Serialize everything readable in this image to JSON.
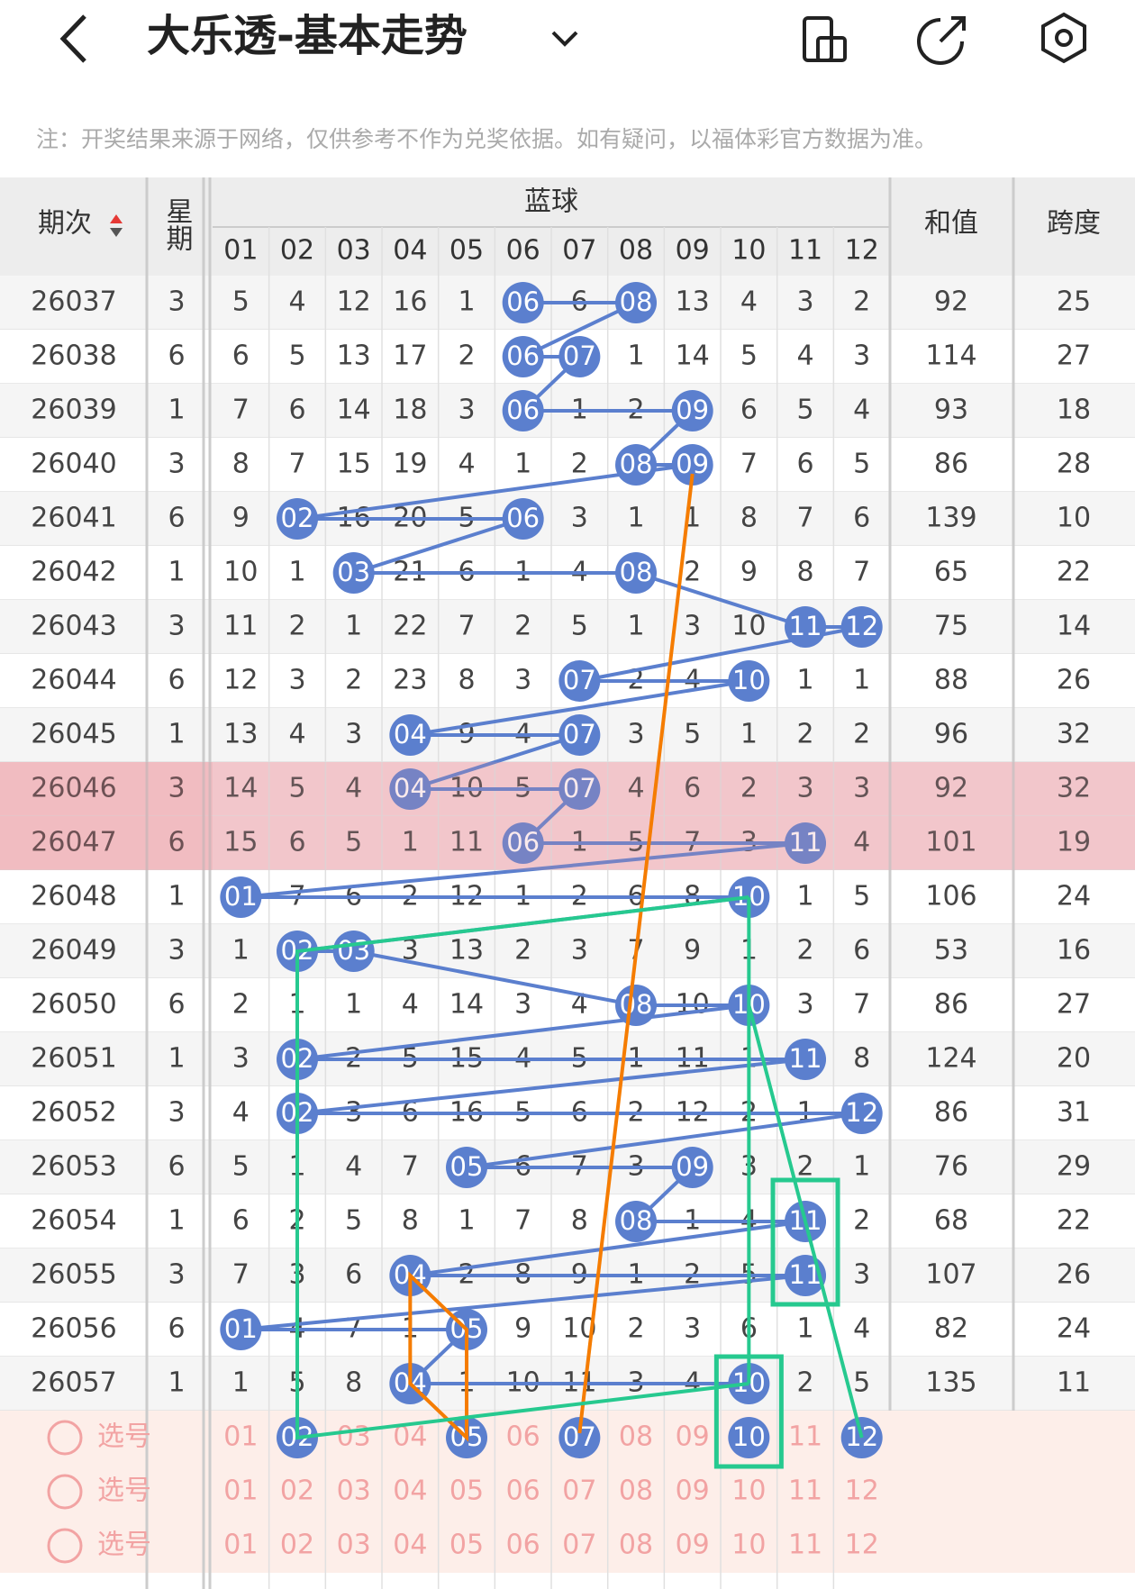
{
  "header": {
    "title": "大乐透-基本走势",
    "note": "注：开奖结果来源于网络，仅供参考不作为兑奖依据。如有疑问，以福体彩官方数据为准。"
  },
  "table": {
    "headers": {
      "period": "期次",
      "weekday": "星期",
      "blue": "蓝球",
      "numbers": [
        "01",
        "02",
        "03",
        "04",
        "05",
        "06",
        "07",
        "08",
        "09",
        "10",
        "11",
        "12"
      ],
      "sum": "和值",
      "span": "跨度"
    },
    "rows": [
      {
        "period": "26037",
        "weekday": 3,
        "cells": [
          5,
          4,
          12,
          16,
          1,
          {
            "ball": "06"
          },
          6,
          {
            "ball": "08"
          },
          13,
          4,
          3,
          2
        ],
        "sum": 92,
        "span": 25
      },
      {
        "period": "26038",
        "weekday": 6,
        "cells": [
          6,
          5,
          13,
          17,
          2,
          {
            "ball": "06"
          },
          {
            "ball": "07"
          },
          1,
          14,
          5,
          4,
          3
        ],
        "sum": 114,
        "span": 27
      },
      {
        "period": "26039",
        "weekday": 1,
        "cells": [
          7,
          6,
          14,
          18,
          3,
          {
            "ball": "06"
          },
          1,
          2,
          {
            "ball": "09"
          },
          6,
          5,
          4
        ],
        "sum": 93,
        "span": 18
      },
      {
        "period": "26040",
        "weekday": 3,
        "cells": [
          8,
          7,
          15,
          19,
          4,
          1,
          2,
          {
            "ball": "08"
          },
          {
            "ball": "09"
          },
          7,
          6,
          5
        ],
        "sum": 86,
        "span": 28
      },
      {
        "period": "26041",
        "weekday": 6,
        "cells": [
          9,
          {
            "ball": "02"
          },
          16,
          20,
          5,
          {
            "ball": "06"
          },
          3,
          1,
          1,
          8,
          7,
          6
        ],
        "sum": 139,
        "span": 10
      },
      {
        "period": "26042",
        "weekday": 1,
        "cells": [
          10,
          1,
          {
            "ball": "03"
          },
          21,
          6,
          1,
          4,
          {
            "ball": "08"
          },
          2,
          9,
          8,
          7
        ],
        "sum": 65,
        "span": 22
      },
      {
        "period": "26043",
        "weekday": 3,
        "cells": [
          11,
          2,
          1,
          22,
          7,
          2,
          5,
          1,
          3,
          10,
          {
            "ball": "11"
          },
          {
            "ball": "12"
          }
        ],
        "sum": 75,
        "span": 14
      },
      {
        "period": "26044",
        "weekday": 6,
        "cells": [
          12,
          3,
          2,
          23,
          8,
          3,
          {
            "ball": "07"
          },
          2,
          4,
          {
            "ball": "10"
          },
          1,
          1
        ],
        "sum": 88,
        "span": 26
      },
      {
        "period": "26045",
        "weekday": 1,
        "cells": [
          13,
          4,
          3,
          {
            "ball": "04"
          },
          9,
          4,
          {
            "ball": "07"
          },
          3,
          5,
          1,
          2,
          2
        ],
        "sum": 96,
        "span": 32
      },
      {
        "period": "26046",
        "weekday": 3,
        "cells": [
          14,
          5,
          4,
          {
            "ball": "04"
          },
          10,
          5,
          {
            "ball": "07"
          },
          4,
          6,
          2,
          3,
          3
        ],
        "sum": 92,
        "span": 32,
        "highlight": true
      },
      {
        "period": "26047",
        "weekday": 6,
        "cells": [
          15,
          6,
          5,
          1,
          11,
          {
            "ball": "06"
          },
          1,
          5,
          7,
          3,
          {
            "ball": "11"
          },
          4
        ],
        "sum": 101,
        "span": 19,
        "highlight": true
      },
      {
        "period": "26048",
        "weekday": 1,
        "cells": [
          {
            "ball": "01"
          },
          7,
          6,
          2,
          12,
          1,
          2,
          6,
          8,
          {
            "ball": "10"
          },
          1,
          5
        ],
        "sum": 106,
        "span": 24
      },
      {
        "period": "26049",
        "weekday": 3,
        "cells": [
          1,
          {
            "ball": "02"
          },
          {
            "ball": "03"
          },
          3,
          13,
          2,
          3,
          7,
          9,
          1,
          2,
          6
        ],
        "sum": 53,
        "span": 16
      },
      {
        "period": "26050",
        "weekday": 6,
        "cells": [
          2,
          1,
          1,
          4,
          14,
          3,
          4,
          {
            "ball": "08"
          },
          10,
          {
            "ball": "10"
          },
          3,
          7
        ],
        "sum": 86,
        "span": 27
      },
      {
        "period": "26051",
        "weekday": 1,
        "cells": [
          3,
          {
            "ball": "02"
          },
          2,
          5,
          15,
          4,
          5,
          1,
          11,
          1,
          {
            "ball": "11"
          },
          8
        ],
        "sum": 124,
        "span": 20
      },
      {
        "period": "26052",
        "weekday": 3,
        "cells": [
          4,
          {
            "ball": "02"
          },
          3,
          6,
          16,
          5,
          6,
          2,
          12,
          2,
          1,
          {
            "ball": "12"
          }
        ],
        "sum": 86,
        "span": 31
      },
      {
        "period": "26053",
        "weekday": 6,
        "cells": [
          5,
          1,
          4,
          7,
          {
            "ball": "05"
          },
          6,
          7,
          3,
          {
            "ball": "09"
          },
          3,
          2,
          1
        ],
        "sum": 76,
        "span": 29
      },
      {
        "period": "26054",
        "weekday": 1,
        "cells": [
          6,
          2,
          5,
          8,
          1,
          7,
          8,
          {
            "ball": "08"
          },
          1,
          4,
          {
            "ball": "11"
          },
          2
        ],
        "sum": 68,
        "span": 22
      },
      {
        "period": "26055",
        "weekday": 3,
        "cells": [
          7,
          3,
          6,
          {
            "ball": "04"
          },
          2,
          8,
          9,
          1,
          2,
          5,
          {
            "ball": "11"
          },
          3
        ],
        "sum": 107,
        "span": 26
      },
      {
        "period": "26056",
        "weekday": 6,
        "cells": [
          {
            "ball": "01"
          },
          4,
          7,
          1,
          {
            "ball": "05"
          },
          9,
          10,
          2,
          3,
          6,
          1,
          4
        ],
        "sum": 82,
        "span": 24
      },
      {
        "period": "26057",
        "weekday": 1,
        "cells": [
          1,
          5,
          8,
          {
            "ball": "04"
          },
          1,
          10,
          11,
          3,
          4,
          {
            "ball": "10"
          },
          2,
          5
        ],
        "sum": 135,
        "span": 11
      }
    ],
    "pick_rows": [
      {
        "label": "选号",
        "cells": [
          "01",
          {
            "ball": "02"
          },
          "03",
          "04",
          {
            "ball": "05"
          },
          "06",
          {
            "ball": "07"
          },
          "08",
          "09",
          {
            "ball": "10"
          },
          "11",
          {
            "ball": "12"
          }
        ]
      },
      {
        "label": "选号",
        "cells": [
          "01",
          "02",
          "03",
          "04",
          "05",
          "06",
          "07",
          "08",
          "09",
          "10",
          "11",
          "12"
        ]
      },
      {
        "label": "选号",
        "cells": [
          "01",
          "02",
          "03",
          "04",
          "05",
          "06",
          "07",
          "08",
          "09",
          "10",
          "11",
          "12"
        ]
      }
    ]
  }
}
